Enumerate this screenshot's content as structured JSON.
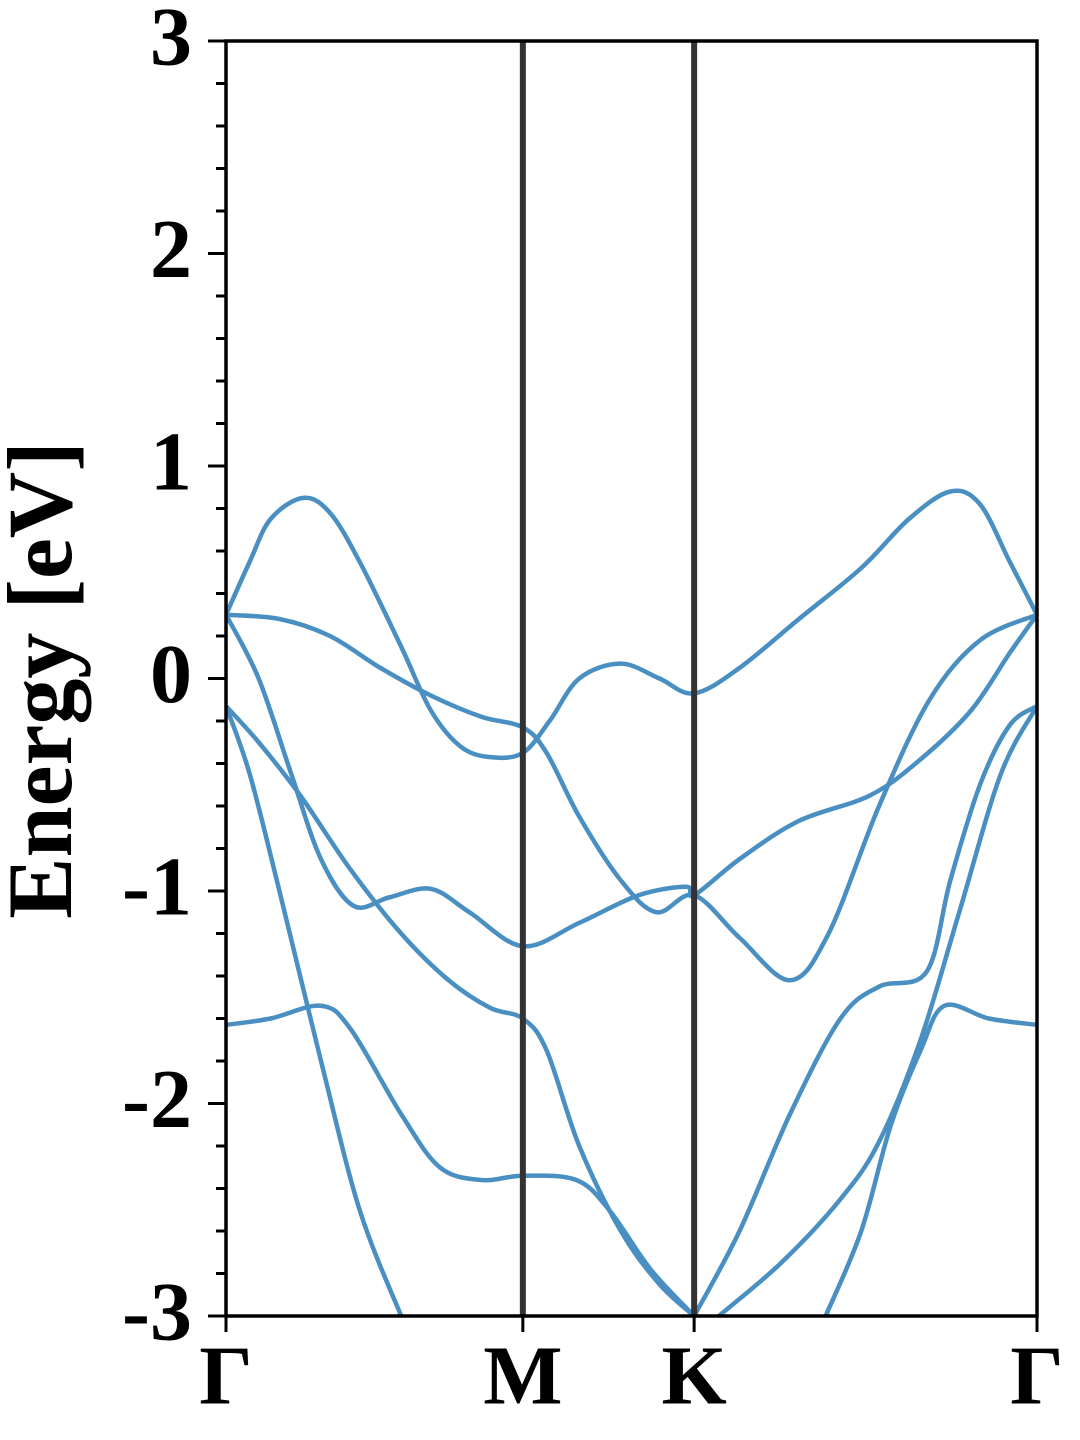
{
  "chart_data": {
    "type": "line",
    "ylabel": "Energy [eV]",
    "xlim": [
      0,
      2.732
    ],
    "xticks": [
      {
        "value": 0,
        "label": "Γ"
      },
      {
        "value": 1,
        "label": "M"
      },
      {
        "value": 1.577,
        "label": "K"
      },
      {
        "value": 2.732,
        "label": "Γ"
      }
    ],
    "ylim": [
      -3,
      3
    ],
    "yticks": [
      3,
      2,
      1,
      0,
      -1,
      -2,
      -3
    ],
    "minor_yticks": [
      2.8,
      2.6,
      2.4,
      2.2,
      1.8,
      1.6,
      1.4,
      1.2,
      0.8,
      0.6,
      0.4,
      0.2,
      -0.2,
      -0.4,
      -0.6,
      -0.8,
      -1.2,
      -1.4,
      -1.6,
      -1.8,
      -2.2,
      -2.4,
      -2.6,
      -2.8
    ],
    "series": [
      {
        "color": "#4a8fc2",
        "x": [
          0,
          0.08,
          0.15,
          0.26,
          0.35,
          0.45,
          0.59,
          0.69,
          0.79,
          0.89,
          1,
          1.09,
          1.19,
          1.33,
          1.46,
          1.577,
          1.73,
          1.93,
          2.14,
          2.3,
          2.44,
          2.54,
          2.64,
          2.732
        ],
        "values": [
          0.3,
          0.55,
          0.75,
          0.85,
          0.78,
          0.55,
          0.15,
          -0.15,
          -0.32,
          -0.37,
          -0.35,
          -0.2,
          0.0,
          0.07,
          0.0,
          -0.07,
          0.05,
          0.28,
          0.52,
          0.75,
          0.88,
          0.82,
          0.55,
          0.3
        ]
      },
      {
        "color": "#4a8fc2",
        "x": [
          0,
          0.18,
          0.35,
          0.52,
          0.69,
          0.86,
          1,
          1.08,
          1.19,
          1.33,
          1.45,
          1.577,
          1.73,
          1.9,
          2.03,
          2.2,
          2.37,
          2.54,
          2.732
        ],
        "values": [
          0.3,
          0.28,
          0.2,
          0.05,
          -0.08,
          -0.18,
          -0.23,
          -0.35,
          -0.65,
          -0.95,
          -1.1,
          -1.02,
          -1.22,
          -1.42,
          -1.2,
          -0.6,
          -0.1,
          0.18,
          0.3
        ]
      },
      {
        "color": "#4a8fc2",
        "x": [
          0,
          0.11,
          0.22,
          0.32,
          0.43,
          0.55,
          0.69,
          0.82,
          1,
          1.19,
          1.39,
          1.55,
          1.577,
          1.73,
          1.93,
          2.17,
          2.34,
          2.51,
          2.64,
          2.732
        ],
        "values": [
          0.3,
          0.0,
          -0.45,
          -0.85,
          -1.07,
          -1.03,
          -0.99,
          -1.1,
          -1.26,
          -1.15,
          -1.02,
          -0.98,
          -1.02,
          -0.85,
          -0.67,
          -0.55,
          -0.38,
          -0.15,
          0.12,
          0.3
        ]
      },
      {
        "color": "#4a8fc2",
        "x": [
          0,
          0.11,
          0.25,
          0.42,
          0.59,
          0.75,
          0.89,
          1,
          1.08,
          1.19,
          1.33,
          1.46,
          1.577
        ],
        "values": [
          -0.13,
          -0.3,
          -0.55,
          -0.9,
          -1.2,
          -1.42,
          -1.55,
          -1.6,
          -1.75,
          -2.2,
          -2.6,
          -2.85,
          -3
        ]
      },
      {
        "color": "#4a8fc2",
        "x": [
          0,
          0.08,
          0.18,
          0.32,
          0.45,
          0.59
        ],
        "values": [
          -0.13,
          -0.45,
          -1.0,
          -1.8,
          -2.5,
          -3
        ]
      },
      {
        "color": "#4a8fc2",
        "x": [
          0,
          0.15,
          0.32,
          0.42,
          0.59,
          0.72,
          0.86,
          1,
          1.18,
          1.29,
          1.43,
          1.577
        ],
        "values": [
          -1.63,
          -1.6,
          -1.54,
          -1.65,
          -2.05,
          -2.3,
          -2.36,
          -2.34,
          -2.36,
          -2.5,
          -2.78,
          -3
        ]
      },
      {
        "color": "#4a8fc2",
        "x": [
          1.577,
          1.73,
          1.9,
          2.07,
          2.2,
          2.36,
          2.44,
          2.54,
          2.64,
          2.732
        ],
        "values": [
          -3,
          -2.6,
          -2.05,
          -1.6,
          -1.45,
          -1.38,
          -0.95,
          -0.5,
          -0.22,
          -0.13
        ]
      },
      {
        "color": "#4a8fc2",
        "x": [
          1.66,
          1.87,
          2.07,
          2.2,
          2.34,
          2.47,
          2.61,
          2.732
        ],
        "values": [
          -3,
          -2.75,
          -2.45,
          -2.18,
          -1.7,
          -1.1,
          -0.45,
          -0.13
        ]
      },
      {
        "color": "#4a8fc2",
        "x": [
          2.02,
          2.14,
          2.24,
          2.34,
          2.42,
          2.57,
          2.732
        ],
        "values": [
          -3,
          -2.6,
          -2.1,
          -1.75,
          -1.54,
          -1.6,
          -1.63
        ]
      }
    ]
  }
}
